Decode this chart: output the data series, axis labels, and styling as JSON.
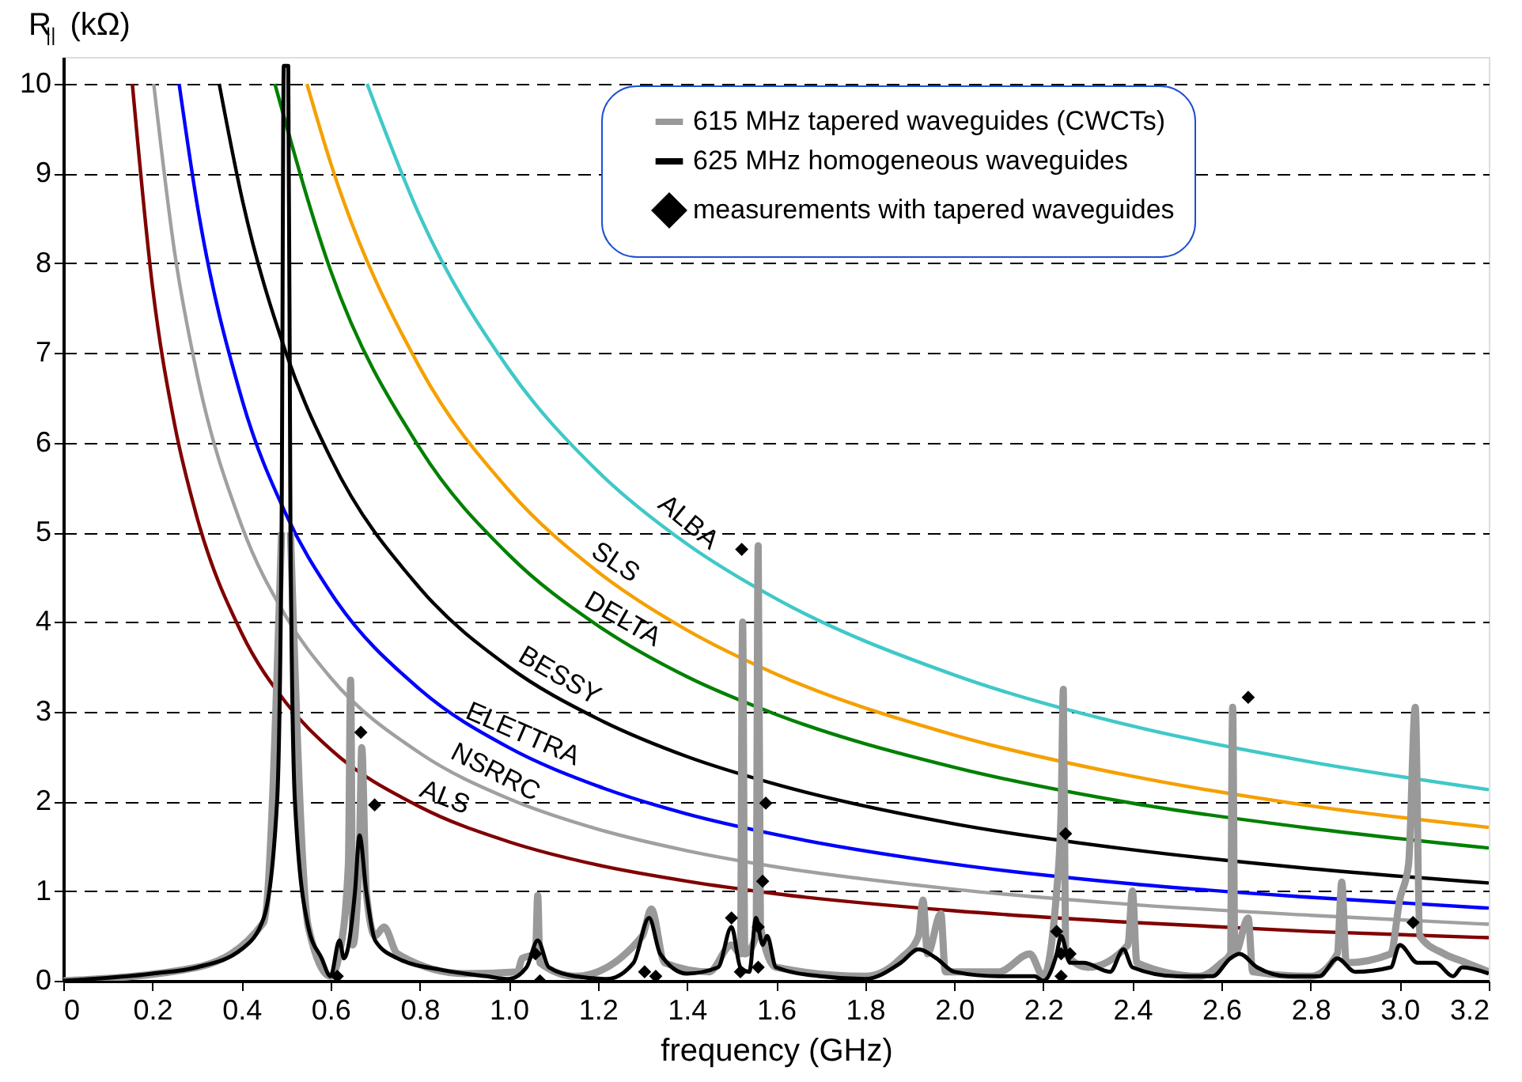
{
  "chart_data": {
    "type": "line",
    "xlabel": "frequency (GHz)",
    "ylabel": "R$_{||}$ (kΩ)",
    "xlim": [
      0,
      3.2
    ],
    "ylim": [
      0,
      10.3
    ],
    "xticks": [
      0,
      0.2,
      0.4,
      0.6,
      0.8,
      {
        "value": 1,
        "label": "1.0"
      },
      1.2,
      1.4,
      1.6,
      1.8,
      {
        "value": 2,
        "label": "2.0"
      },
      2.2,
      2.4,
      2.6,
      2.8,
      {
        "value": 3,
        "label": "3.0"
      },
      3.2
    ],
    "yticks": [
      0,
      1,
      2,
      3,
      4,
      5,
      6,
      7,
      8,
      9,
      10
    ],
    "grid": "y",
    "legend": "top right",
    "series": [
      {
        "color": "#800000",
        "x": [
          0.155,
          0.2,
          0.25,
          0.3,
          0.4,
          0.5,
          0.6,
          0.8,
          1.0,
          1.2,
          1.4,
          1.6,
          2.0,
          2.4,
          2.8,
          3.2
        ],
        "values": [
          10,
          7.75,
          6.2,
          5.17,
          3.88,
          3.1,
          2.58,
          1.94,
          1.55,
          1.29,
          1.11,
          0.97,
          0.78,
          0.65,
          0.55,
          0.48
        ]
      },
      {
        "color": "#a0a0a0",
        "x": [
          0.203,
          0.25,
          0.3,
          0.4,
          0.5,
          0.6,
          0.8,
          1.0,
          1.2,
          1.4,
          1.6,
          2.0,
          2.4,
          2.8,
          3.2
        ],
        "values": [
          10,
          8.12,
          6.77,
          5.08,
          4.06,
          3.38,
          2.54,
          2.03,
          1.69,
          1.45,
          1.27,
          1.02,
          0.85,
          0.73,
          0.63
        ]
      },
      {
        "color": "#0000ff",
        "x": [
          0.26,
          0.3,
          0.4,
          0.5,
          0.6,
          0.8,
          1.0,
          1.2,
          1.4,
          1.6,
          2.0,
          2.4,
          2.8,
          3.2
        ],
        "values": [
          10,
          8.67,
          6.5,
          5.2,
          4.33,
          3.25,
          2.6,
          2.17,
          1.86,
          1.63,
          1.3,
          1.08,
          0.93,
          0.81
        ]
      },
      {
        "color": "#000000",
        "x": [
          0.35,
          0.4,
          0.5,
          0.6,
          0.8,
          1.0,
          1.2,
          1.4,
          1.6,
          2.0,
          2.4,
          2.8,
          3.2
        ],
        "values": [
          10,
          8.75,
          7.0,
          5.83,
          4.38,
          3.5,
          2.92,
          2.5,
          2.19,
          1.75,
          1.46,
          1.25,
          1.09
        ]
      },
      {
        "color": "#008000",
        "x": [
          0.475,
          0.6,
          0.8,
          1.0,
          1.2,
          1.4,
          1.6,
          2.0,
          2.4,
          2.8,
          3.2
        ],
        "values": [
          10,
          7.92,
          5.94,
          4.75,
          3.96,
          3.39,
          2.97,
          2.38,
          1.98,
          1.7,
          1.48
        ]
      },
      {
        "color": "#f5a000",
        "x": [
          0.547,
          0.6,
          0.8,
          1.0,
          1.2,
          1.4,
          1.6,
          2.0,
          2.4,
          2.8,
          3.2
        ],
        "values": [
          10,
          9.12,
          6.84,
          5.47,
          4.56,
          3.91,
          3.42,
          2.74,
          2.28,
          1.95,
          1.71
        ]
      },
      {
        "color": "#40c8c8",
        "x": [
          0.682,
          0.8,
          1.0,
          1.2,
          1.4,
          1.6,
          2.0,
          2.4,
          2.8,
          3.2
        ],
        "values": [
          10,
          8.53,
          6.82,
          5.68,
          4.87,
          4.26,
          3.41,
          2.84,
          2.44,
          2.13
        ]
      },
      {
        "name": "615 MHz tapered waveguides (CWCTs)",
        "color": "#999999",
        "x": [
          0,
          0.3,
          0.45,
          0.49,
          0.495,
          0.505,
          0.51,
          0.55,
          0.6,
          0.62,
          0.64,
          0.645,
          0.65,
          0.665,
          0.67,
          0.68,
          0.7,
          0.72,
          0.75,
          0.9,
          1.02,
          1.03,
          1.06,
          1.065,
          1.07,
          1.15,
          1.3,
          1.32,
          1.35,
          1.45,
          1.5,
          1.52,
          1.525,
          1.53,
          1.555,
          1.56,
          1.565,
          1.6,
          1.8,
          1.88,
          1.92,
          1.93,
          1.94,
          1.97,
          1.98,
          2.1,
          2.17,
          2.2,
          2.23,
          2.24,
          2.245,
          2.25,
          2.3,
          2.39,
          2.4,
          2.41,
          2.55,
          2.6,
          2.62,
          2.625,
          2.63,
          2.66,
          2.67,
          2.8,
          2.86,
          2.87,
          2.88,
          2.98,
          3.0,
          3.02,
          3.035,
          3.045,
          3.1,
          3.15,
          3.2
        ],
        "values": [
          0,
          0.15,
          0.65,
          5,
          null,
          null,
          5,
          0.6,
          0.05,
          0.3,
          1.3,
          3.35,
          0.4,
          1.5,
          2.6,
          1.0,
          0.5,
          0.6,
          0.3,
          0.08,
          0.1,
          0.25,
          0.3,
          0.95,
          0.2,
          0.05,
          0.5,
          0.8,
          0.2,
          0.1,
          0.4,
          0.3,
          4.0,
          0.3,
          0.5,
          4.85,
          0.6,
          0.15,
          0.05,
          0.25,
          0.5,
          0.9,
          0.3,
          0.75,
          0.1,
          0.1,
          0.3,
          0.05,
          1.0,
          1.9,
          3.25,
          0.3,
          0.15,
          0.4,
          1.0,
          0.2,
          0.05,
          0.2,
          0.3,
          3.05,
          0.3,
          0.7,
          0.1,
          0.05,
          0.3,
          1.1,
          0.2,
          0.3,
          0.9,
          1.3,
          3.05,
          0.5,
          0.3,
          0.2,
          0.1
        ]
      },
      {
        "name": "625 MHz homogeneous waveguides",
        "color": "#000000",
        "x": [
          0,
          0.2,
          0.3,
          0.4,
          0.45,
          0.48,
          0.49,
          0.495,
          0.505,
          0.51,
          0.52,
          0.55,
          0.58,
          0.6,
          0.62,
          0.63,
          0.655,
          0.665,
          0.68,
          0.7,
          0.75,
          0.85,
          0.95,
          1.0,
          1.04,
          1.065,
          1.09,
          1.15,
          1.22,
          1.28,
          1.315,
          1.34,
          1.4,
          1.47,
          1.5,
          1.52,
          1.54,
          1.555,
          1.57,
          1.58,
          1.6,
          1.7,
          1.8,
          1.88,
          1.92,
          1.96,
          2.0,
          2.1,
          2.18,
          2.2,
          2.23,
          2.24,
          2.26,
          2.29,
          2.35,
          2.38,
          2.4,
          2.5,
          2.58,
          2.62,
          2.64,
          2.68,
          2.75,
          2.82,
          2.86,
          2.9,
          2.98,
          3.0,
          3.04,
          3.08,
          3.12,
          3.14,
          3.2
        ],
        "values": [
          0,
          0.08,
          0.15,
          0.35,
          0.7,
          2,
          5,
          10.2,
          10.2,
          5,
          2,
          0.6,
          0.25,
          0.05,
          0.45,
          0.25,
          1.0,
          1.62,
          1.0,
          0.45,
          0.25,
          0.12,
          0.05,
          0.02,
          0.15,
          0.45,
          0.15,
          0.05,
          0.02,
          0.2,
          0.7,
          0.3,
          0.08,
          0.15,
          0.6,
          0.15,
          0.1,
          0.7,
          0.4,
          0.5,
          0.15,
          0.05,
          0.02,
          0.2,
          0.35,
          0.25,
          0.1,
          0.05,
          0.05,
          0,
          0.3,
          0.5,
          0.2,
          0.2,
          0.1,
          0.35,
          0.15,
          0.05,
          0.05,
          0.25,
          0.3,
          0.15,
          0.05,
          0.05,
          0.25,
          0.1,
          0.15,
          0.4,
          0.2,
          0.2,
          0.05,
          0.15,
          0.08
        ]
      },
      {
        "type": "scatter",
        "name": "measurements with tapered waveguides",
        "color": "#000000",
        "marker": "diamond",
        "x": [
          0.615,
          0.668,
          0.699,
          1.06,
          1.07,
          1.305,
          1.33,
          1.5,
          1.523,
          1.52,
          1.56,
          1.577,
          1.57,
          1.56,
          2.23,
          2.24,
          2.25,
          2.26,
          2.24,
          2.66,
          3.03
        ],
        "values": [
          0.05,
          2.77,
          1.96,
          0.3,
          0.0,
          0.1,
          0.05,
          0.7,
          4.81,
          0.1,
          0.15,
          1.98,
          1.11,
          0.6,
          0.55,
          0.3,
          1.64,
          0.3,
          0.05,
          3.16,
          0.65
        ]
      }
    ],
    "annotations": [
      {
        "text": "ALBA",
        "x": 1.378,
        "y": 4.96
      },
      {
        "text": "SLS",
        "x": 1.218,
        "y": 4.5
      },
      {
        "text": "DELTA",
        "x": 1.236,
        "y": 3.86
      },
      {
        "text": "BESSY",
        "x": 1.094,
        "y": 3.23
      },
      {
        "text": "ELETTRA",
        "x": 1.016,
        "y": 2.57
      },
      {
        "text": "NSRRC",
        "x": 0.952,
        "y": 2.15
      },
      {
        "text": "ALS",
        "x": 0.842,
        "y": 1.86
      }
    ]
  }
}
